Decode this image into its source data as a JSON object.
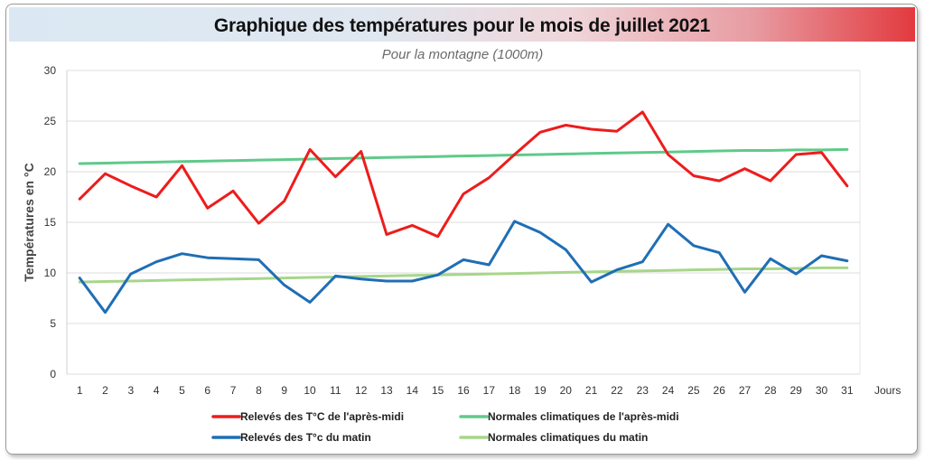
{
  "chart_data": {
    "type": "line",
    "title": "Graphique des températures pour le mois de juillet 2021",
    "subtitle": "Pour la montagne (1000m)",
    "ylabel": "Températures en °C",
    "xlabel": "Jours",
    "ylim": [
      0,
      30
    ],
    "yticks": [
      0,
      5,
      10,
      15,
      20,
      25,
      30
    ],
    "x": [
      1,
      2,
      3,
      4,
      5,
      6,
      7,
      8,
      9,
      10,
      11,
      12,
      13,
      14,
      15,
      16,
      17,
      18,
      19,
      20,
      21,
      22,
      23,
      24,
      25,
      26,
      27,
      28,
      29,
      30,
      31
    ],
    "grid": true,
    "legend_position": "bottom",
    "series": [
      {
        "name": "Relevés des T°C de l'après-midi",
        "color": "#ee1c1c",
        "values": [
          17.3,
          19.8,
          18.6,
          17.5,
          20.6,
          16.4,
          18.1,
          14.9,
          17.1,
          22.2,
          19.5,
          22.0,
          13.8,
          14.7,
          13.6,
          17.8,
          19.4,
          21.7,
          23.9,
          24.6,
          24.2,
          24.0,
          25.9,
          21.7,
          19.6,
          19.1,
          20.3,
          19.1,
          21.7,
          21.9,
          18.6
        ]
      },
      {
        "name": "Normales climatiques de l'après-midi",
        "color": "#5fca8a",
        "values": [
          20.8,
          20.85,
          20.9,
          20.95,
          21.0,
          21.05,
          21.1,
          21.15,
          21.2,
          21.25,
          21.3,
          21.35,
          21.4,
          21.45,
          21.5,
          21.55,
          21.6,
          21.65,
          21.7,
          21.75,
          21.8,
          21.85,
          21.9,
          21.95,
          22.0,
          22.05,
          22.1,
          22.1,
          22.15,
          22.15,
          22.2
        ]
      },
      {
        "name": "Relevés des T°c du matin",
        "color": "#1f6eb5",
        "values": [
          9.5,
          6.1,
          9.9,
          11.1,
          11.9,
          11.5,
          11.4,
          11.3,
          8.8,
          7.1,
          9.7,
          9.4,
          9.2,
          9.2,
          9.8,
          11.3,
          10.8,
          15.1,
          14.0,
          12.3,
          9.1,
          10.3,
          11.1,
          14.8,
          12.7,
          12.0,
          8.1,
          11.4,
          9.9,
          11.7,
          11.2
        ]
      },
      {
        "name": "Normales climatiques du matin",
        "color": "#a7d68a",
        "values": [
          9.1,
          9.15,
          9.2,
          9.25,
          9.3,
          9.35,
          9.4,
          9.45,
          9.5,
          9.55,
          9.6,
          9.65,
          9.7,
          9.75,
          9.8,
          9.85,
          9.9,
          9.95,
          10.0,
          10.05,
          10.1,
          10.15,
          10.2,
          10.25,
          10.3,
          10.35,
          10.4,
          10.4,
          10.45,
          10.5,
          10.5
        ]
      }
    ]
  }
}
